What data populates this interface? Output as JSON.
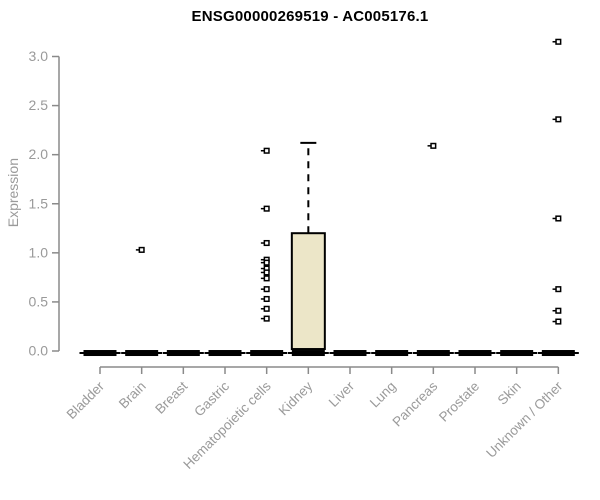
{
  "chart_data": {
    "type": "boxplot",
    "title": "ENSG00000269519 - AC005176.1",
    "xlabel": "",
    "ylabel": "Expression",
    "ylim": [
      0,
      3.0
    ],
    "yticks": [
      "0.0",
      "0.5",
      "1.0",
      "1.5",
      "2.0",
      "2.5",
      "3.0"
    ],
    "grid": false,
    "legend": "none",
    "categories": [
      "Bladder",
      "Brain",
      "Breast",
      "Gastric",
      "Hematopoietic cells",
      "Kidney",
      "Liver",
      "Lung",
      "Pancreas",
      "Prostate",
      "Skin",
      "Unknown / Other"
    ],
    "series": [
      {
        "category": "Bladder",
        "median": 0.01,
        "q1": 0.0,
        "q3": 0.02,
        "whisker_low": 0.0,
        "whisker_high": 0.02,
        "outliers": []
      },
      {
        "category": "Brain",
        "median": 0.01,
        "q1": 0.0,
        "q3": 0.02,
        "whisker_low": 0.0,
        "whisker_high": 0.02,
        "outliers": [
          1.03
        ]
      },
      {
        "category": "Breast",
        "median": 0.01,
        "q1": 0.0,
        "q3": 0.02,
        "whisker_low": 0.0,
        "whisker_high": 0.02,
        "outliers": []
      },
      {
        "category": "Gastric",
        "median": 0.01,
        "q1": 0.0,
        "q3": 0.02,
        "whisker_low": 0.0,
        "whisker_high": 0.02,
        "outliers": []
      },
      {
        "category": "Hematopoietic cells",
        "median": 0.01,
        "q1": 0.0,
        "q3": 0.02,
        "whisker_low": 0.0,
        "whisker_high": 0.02,
        "outliers": [
          2.04,
          1.45,
          1.1,
          0.93,
          0.9,
          0.84,
          0.8,
          0.74,
          0.63,
          0.53,
          0.43,
          0.33
        ]
      },
      {
        "category": "Kidney",
        "median": 0.01,
        "q1": 0.02,
        "q3": 1.2,
        "whisker_low": 0.0,
        "whisker_high": 2.12,
        "outliers": []
      },
      {
        "category": "Liver",
        "median": 0.01,
        "q1": 0.0,
        "q3": 0.02,
        "whisker_low": 0.0,
        "whisker_high": 0.02,
        "outliers": []
      },
      {
        "category": "Lung",
        "median": 0.01,
        "q1": 0.0,
        "q3": 0.02,
        "whisker_low": 0.0,
        "whisker_high": 0.02,
        "outliers": []
      },
      {
        "category": "Pancreas",
        "median": 0.01,
        "q1": 0.0,
        "q3": 0.02,
        "whisker_low": 0.0,
        "whisker_high": 0.02,
        "outliers": [
          2.09
        ]
      },
      {
        "category": "Prostate",
        "median": 0.01,
        "q1": 0.0,
        "q3": 0.02,
        "whisker_low": 0.0,
        "whisker_high": 0.02,
        "outliers": []
      },
      {
        "category": "Skin",
        "median": 0.01,
        "q1": 0.0,
        "q3": 0.02,
        "whisker_low": 0.0,
        "whisker_high": 0.02,
        "outliers": []
      },
      {
        "category": "Unknown / Other",
        "median": 0.01,
        "q1": 0.0,
        "q3": 0.02,
        "whisker_low": 0.0,
        "whisker_high": 0.02,
        "outliers": [
          3.15,
          2.36,
          1.35,
          0.63,
          0.41,
          0.3
        ]
      }
    ],
    "colors": {
      "box_fill": "#ece6c8",
      "box_border": "#000000",
      "bar": "#000000",
      "marker_fill": "#ffffff",
      "marker_border": "#000000",
      "axis": "#8a8a8a",
      "tick_label": "#9a9a9a",
      "title": "#000000",
      "background": "#ffffff"
    }
  }
}
